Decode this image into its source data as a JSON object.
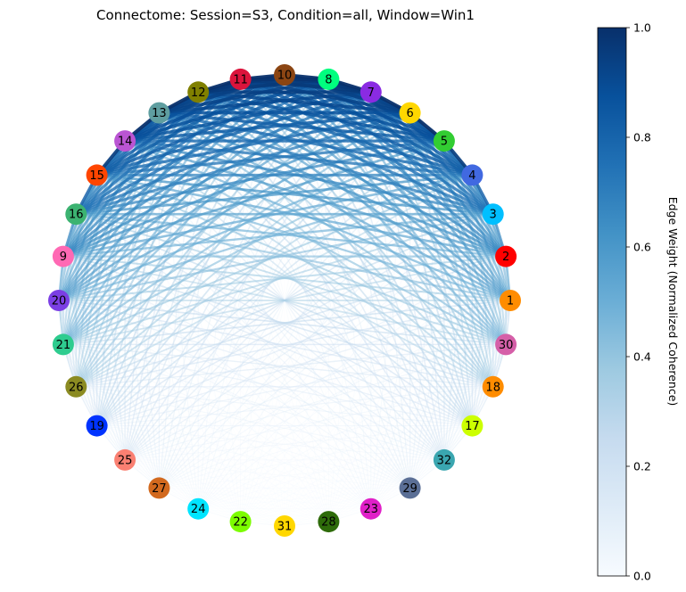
{
  "figure": {
    "title": "Connectome: Session=S3, Condition=all, Window=Win1"
  },
  "colorbar": {
    "label": "Edge Weight (Normalized Coherence)",
    "range": [
      0,
      1
    ],
    "ticks": [
      "0.0",
      "0.2",
      "0.4",
      "0.6",
      "0.8",
      "1.0"
    ],
    "colormap_stops": [
      "#f7fbff",
      "#deebf7",
      "#c6dbef",
      "#9ecae1",
      "#6baed6",
      "#4292c6",
      "#2171b5",
      "#08519c",
      "#08306b"
    ]
  },
  "network": {
    "nodes": [
      {
        "label": "1",
        "color": "#ff8c00"
      },
      {
        "label": "2",
        "color": "#ff0000"
      },
      {
        "label": "3",
        "color": "#00bfff"
      },
      {
        "label": "4",
        "color": "#4169e1"
      },
      {
        "label": "5",
        "color": "#32cd32"
      },
      {
        "label": "6",
        "color": "#ffd700"
      },
      {
        "label": "7",
        "color": "#8a2be2"
      },
      {
        "label": "8",
        "color": "#00ff7f"
      },
      {
        "label": "10",
        "color": "#8b4513"
      },
      {
        "label": "11",
        "color": "#dc143c"
      },
      {
        "label": "12",
        "color": "#808000"
      },
      {
        "label": "13",
        "color": "#5f9ea0"
      },
      {
        "label": "14",
        "color": "#ba55d3"
      },
      {
        "label": "15",
        "color": "#ff4500"
      },
      {
        "label": "16",
        "color": "#3cb371"
      },
      {
        "label": "9",
        "color": "#ff69b4"
      },
      {
        "label": "20",
        "color": "#7b3fe4"
      },
      {
        "label": "21",
        "color": "#2ecc8f"
      },
      {
        "label": "26",
        "color": "#8b8b22"
      },
      {
        "label": "19",
        "color": "#0033ff"
      },
      {
        "label": "25",
        "color": "#fa8072"
      },
      {
        "label": "27",
        "color": "#d2691e"
      },
      {
        "label": "24",
        "color": "#00e5ff"
      },
      {
        "label": "22",
        "color": "#7cfc00"
      },
      {
        "label": "31",
        "color": "#ffd700"
      },
      {
        "label": "28",
        "color": "#2e6b0a"
      },
      {
        "label": "23",
        "color": "#e020c8"
      },
      {
        "label": "29",
        "color": "#5b6f96"
      },
      {
        "label": "32",
        "color": "#3aa6b0"
      },
      {
        "label": "17",
        "color": "#ccff00"
      },
      {
        "label": "18",
        "color": "#ff8c00"
      },
      {
        "label": "30",
        "color": "#d55fa8"
      }
    ]
  }
}
